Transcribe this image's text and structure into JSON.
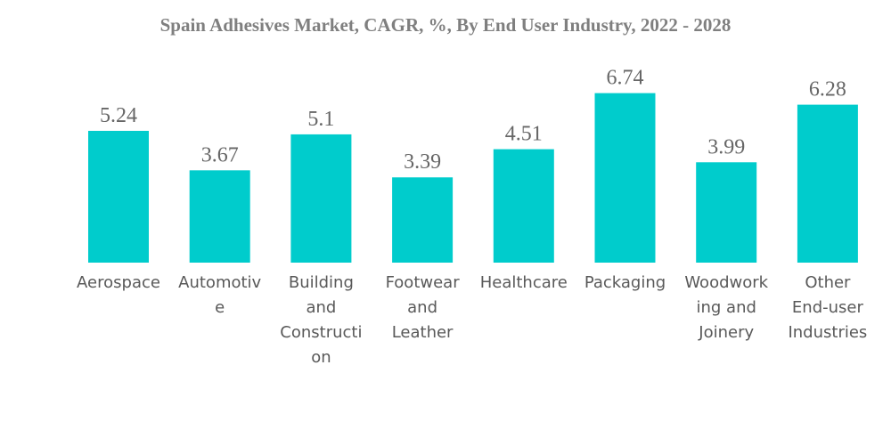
{
  "chart_data": {
    "type": "bar",
    "title": "Spain Adhesives Market, CAGR, %, By End User Industry, 2022 - 2028",
    "xlabel": "",
    "ylabel": "",
    "categories": [
      "Aerospace",
      "Automotive",
      "Building and Construction",
      "Footwear and Leather",
      "Healthcare",
      "Packaging",
      "Woodworking and Joinery",
      "Other End-user Industries"
    ],
    "category_label_lines": [
      [
        "Aerospace"
      ],
      [
        "Automotiv",
        "e"
      ],
      [
        "Building",
        "and",
        "Constructi",
        "on"
      ],
      [
        "Footwear",
        "and",
        "Leather"
      ],
      [
        "Healthcare"
      ],
      [
        "Packaging"
      ],
      [
        "Woodwork",
        "ing and",
        "Joinery"
      ],
      [
        "Other",
        "End-user",
        "Industries"
      ]
    ],
    "values": [
      5.24,
      3.67,
      5.1,
      3.39,
      4.51,
      6.74,
      3.99,
      6.28
    ],
    "value_labels": [
      "5.24",
      "3.67",
      "5.1",
      "3.39",
      "4.51",
      "6.74",
      "3.99",
      "6.28"
    ],
    "ylim": [
      0,
      7
    ],
    "grid": false,
    "legend": "none",
    "bar_color": "#00cccc"
  }
}
